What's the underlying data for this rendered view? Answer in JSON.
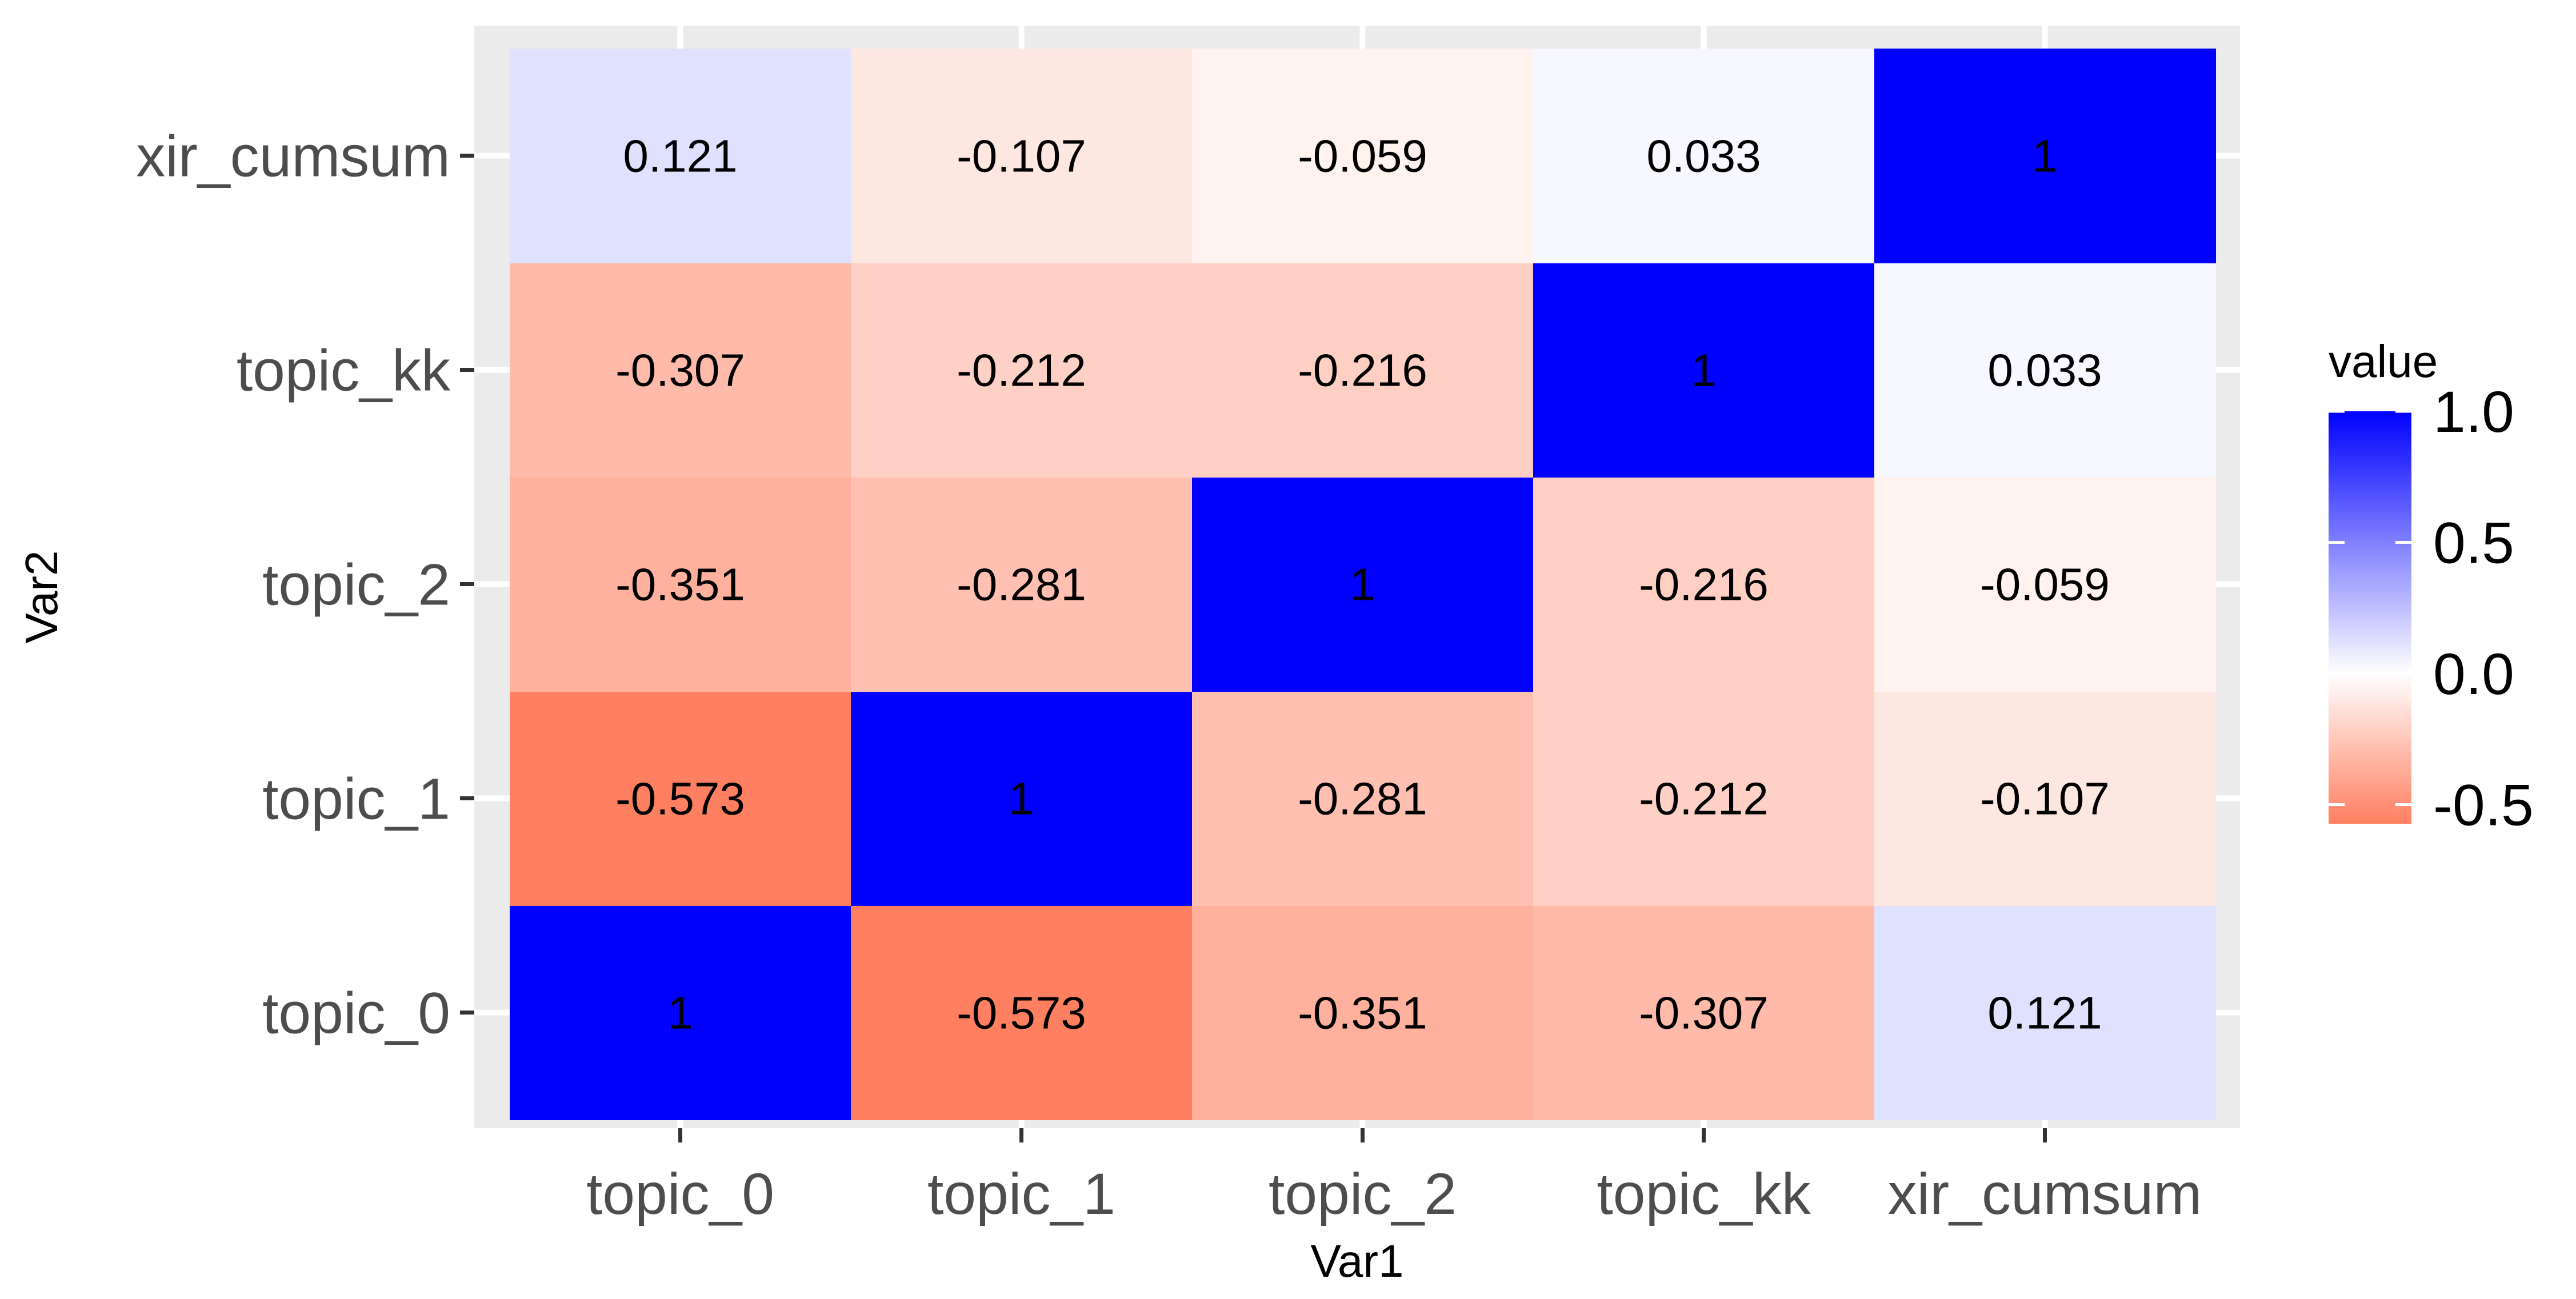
{
  "chart_data": {
    "type": "heatmap",
    "x_categories": [
      "topic_0",
      "topic_1",
      "topic_2",
      "topic_kk",
      "xir_cumsum"
    ],
    "y_categories": [
      "topic_0",
      "topic_1",
      "topic_2",
      "topic_kk",
      "xir_cumsum"
    ],
    "xlabel": "Var1",
    "ylabel": "Var2",
    "values": [
      [
        1,
        -0.573,
        -0.351,
        -0.307,
        0.121
      ],
      [
        -0.573,
        1,
        -0.281,
        -0.212,
        -0.107
      ],
      [
        -0.351,
        -0.281,
        1,
        -0.216,
        -0.059
      ],
      [
        -0.307,
        -0.212,
        -0.216,
        1,
        0.033
      ],
      [
        0.121,
        -0.107,
        -0.059,
        0.033,
        1
      ]
    ],
    "labels": [
      [
        "1",
        "-0.573",
        "-0.351",
        "-0.307",
        "0.121"
      ],
      [
        "-0.573",
        "1",
        "-0.281",
        "-0.212",
        "-0.107"
      ],
      [
        "-0.351",
        "-0.281",
        "1",
        "-0.216",
        "-0.059"
      ],
      [
        "-0.307",
        "-0.212",
        "-0.216",
        "1",
        "0.033"
      ],
      [
        "0.121",
        "-0.107",
        "-0.059",
        "0.033",
        "1"
      ]
    ],
    "legend": {
      "title": "value",
      "ticks": [
        1.0,
        0.5,
        0.0,
        -0.5
      ],
      "tick_labels": [
        "1.0",
        "0.5",
        "0.0",
        "-0.5"
      ],
      "range": [
        -0.573,
        1.0
      ],
      "low_color": "#ff7f61",
      "mid_color": "#ffffff",
      "high_color": "#0000ff",
      "placement": "right"
    },
    "grid": true,
    "panel_background": "#ebebeb"
  }
}
